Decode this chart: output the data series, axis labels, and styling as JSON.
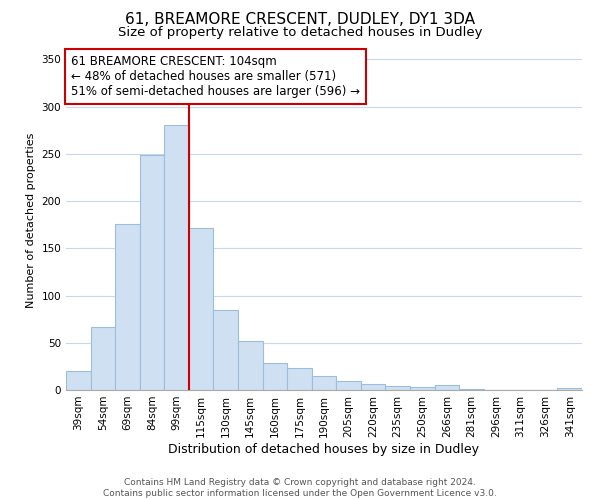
{
  "title": "61, BREAMORE CRESCENT, DUDLEY, DY1 3DA",
  "subtitle": "Size of property relative to detached houses in Dudley",
  "xlabel": "Distribution of detached houses by size in Dudley",
  "ylabel": "Number of detached properties",
  "categories": [
    "39sqm",
    "54sqm",
    "69sqm",
    "84sqm",
    "99sqm",
    "115sqm",
    "130sqm",
    "145sqm",
    "160sqm",
    "175sqm",
    "190sqm",
    "205sqm",
    "220sqm",
    "235sqm",
    "250sqm",
    "266sqm",
    "281sqm",
    "296sqm",
    "311sqm",
    "326sqm",
    "341sqm"
  ],
  "values": [
    20,
    67,
    176,
    249,
    281,
    172,
    85,
    52,
    29,
    23,
    15,
    10,
    6,
    4,
    3,
    5,
    1,
    0,
    0,
    0,
    2
  ],
  "bar_color": "#cfe0f3",
  "bar_edge_color": "#9dbdd8",
  "vline_x": 4.5,
  "vline_color": "#cc0000",
  "annotation_text": "61 BREAMORE CRESCENT: 104sqm\n← 48% of detached houses are smaller (571)\n51% of semi-detached houses are larger (596) →",
  "annotation_box_color": "#ffffff",
  "annotation_box_edge": "#cc0000",
  "ylim": [
    0,
    360
  ],
  "yticks": [
    0,
    50,
    100,
    150,
    200,
    250,
    300,
    350
  ],
  "footer": "Contains HM Land Registry data © Crown copyright and database right 2024.\nContains public sector information licensed under the Open Government Licence v3.0.",
  "title_fontsize": 11,
  "subtitle_fontsize": 9.5,
  "xlabel_fontsize": 9,
  "ylabel_fontsize": 8,
  "tick_fontsize": 7.5,
  "annotation_fontsize": 8.5,
  "footer_fontsize": 6.5
}
